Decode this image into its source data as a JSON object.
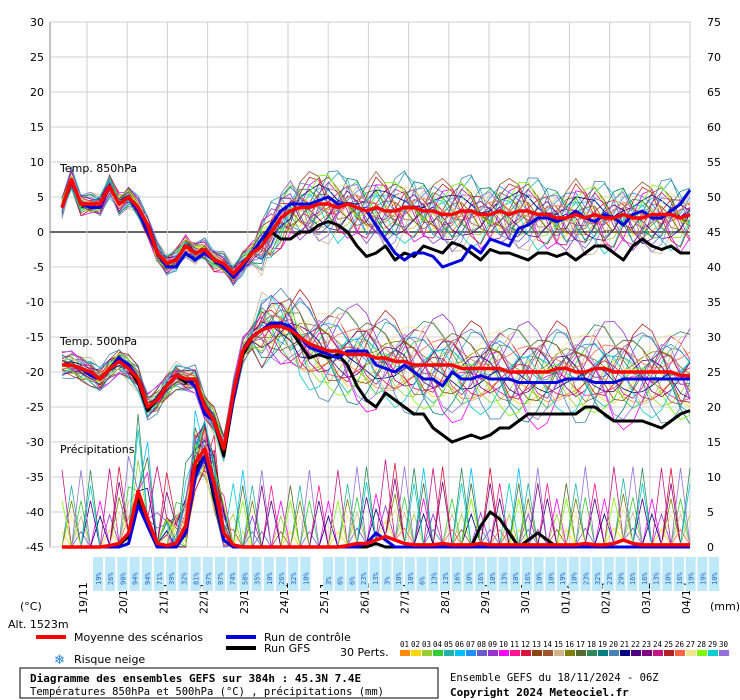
{
  "chart_data": {
    "type": "line",
    "title": "Diagramme des ensembles GEFS sur 384h : 45.3N 7.4E",
    "subtitle": "Températures 850hPa et 500hPa (°C) , précipitations (mm)",
    "left_axis": {
      "label": "(°C)",
      "range": [
        -45,
        30
      ],
      "ticks": [
        30,
        25,
        20,
        15,
        10,
        5,
        0,
        -5,
        -10,
        -15,
        -20,
        -25,
        -30,
        -35,
        -40,
        -45
      ]
    },
    "right_axis": {
      "label": "(mm)",
      "range": [
        0,
        75
      ],
      "ticks": [
        75,
        70,
        65,
        60,
        55,
        50,
        45,
        40,
        35,
        30,
        25,
        20,
        15,
        10,
        5,
        0
      ]
    },
    "x_ticks": [
      "19/11",
      "20/11",
      "21/11",
      "22/11",
      "23/11",
      "24/11",
      "25/11",
      "26/11",
      "27/11",
      "28/11",
      "29/11",
      "30/11",
      "01/12",
      "02/12",
      "03/12",
      "04/12"
    ],
    "altitude": "Alt. 1523m",
    "panels": [
      "Temp. 850hPa",
      "Temp. 500hPa",
      "Précipitations"
    ],
    "legend": {
      "mean": "Moyenne des scénarios",
      "control": "Run de contrôle",
      "gfs": "Run GFS",
      "snow": "Risque neige",
      "perts": "30 Perts."
    },
    "pert_labels": [
      "01",
      "02",
      "03",
      "04",
      "05",
      "06",
      "07",
      "08",
      "09",
      "10",
      "11",
      "12",
      "13",
      "14",
      "15",
      "16",
      "17",
      "18",
      "19",
      "20",
      "21",
      "22",
      "23",
      "24",
      "25",
      "26",
      "27",
      "28",
      "29",
      "30"
    ],
    "pert_colors": [
      "#ff8c00",
      "#ffd700",
      "#9acd32",
      "#32cd32",
      "#20b2aa",
      "#00bfff",
      "#1e90ff",
      "#6a5acd",
      "#9932cc",
      "#ff00ff",
      "#ff1493",
      "#dc143c",
      "#8b4513",
      "#a0522d",
      "#d2b48c",
      "#808000",
      "#556b2f",
      "#2e8b57",
      "#008080",
      "#4682b4",
      "#000080",
      "#4b0082",
      "#800080",
      "#c71585",
      "#b22222",
      "#ff6347",
      "#f0e68c",
      "#7cfc00",
      "#00ced1",
      "#9370db"
    ],
    "series": [
      {
        "name": "Moyenne des scénarios",
        "panel": "850hPa",
        "color": "#ff0000",
        "values": [
          3.5,
          7.5,
          4,
          4,
          4,
          6.5,
          4,
          5,
          3.5,
          1,
          -3,
          -4.5,
          -4,
          -2,
          -3,
          -2.5,
          -4,
          -4.5,
          -6,
          -4.5,
          -3,
          -2,
          0,
          2,
          3,
          3.5,
          3.5,
          4,
          4,
          3.5,
          4,
          3.5,
          3,
          3.5,
          3,
          3,
          3.5,
          3.5,
          3,
          3,
          2.5,
          2.5,
          3,
          3,
          2.5,
          2.5,
          3,
          2.5,
          3,
          3,
          2.5,
          2.5,
          2,
          2,
          2.5,
          2,
          2.5,
          2,
          2,
          2.5,
          2,
          2,
          2.5,
          2.5,
          2.5,
          2,
          2.5
        ]
      },
      {
        "name": "Run de contrôle",
        "panel": "850hPa",
        "color": "#0000dd",
        "values": [
          3.5,
          7.5,
          4,
          3.5,
          3.5,
          6.5,
          4,
          5,
          3,
          0,
          -3,
          -5,
          -5,
          -3,
          -4,
          -3,
          -4,
          -5,
          -6.5,
          -5,
          -3,
          -1,
          1,
          3,
          4,
          4,
          4,
          4.5,
          5,
          4,
          4,
          3.5,
          3,
          1,
          -1,
          -3,
          -4,
          -3,
          -3,
          -3.5,
          -5,
          -4.5,
          -4,
          -2,
          -3,
          -1,
          -1.5,
          -2,
          0.5,
          1,
          2,
          2,
          1.5,
          2,
          3,
          2,
          1.5,
          2.5,
          2,
          1,
          2.5,
          3,
          2,
          2,
          3,
          4,
          6
        ]
      },
      {
        "name": "Run GFS",
        "panel": "850hPa",
        "color": "#000000",
        "values": [
          3.5,
          7.5,
          4,
          4,
          4,
          6.5,
          4,
          5,
          3.5,
          1,
          -3,
          -5,
          -5,
          -3,
          -4,
          -3,
          -4,
          -5,
          -6,
          -4.5,
          -3,
          -1,
          0,
          -1,
          -1,
          0,
          0,
          1,
          1.5,
          1,
          0,
          -2,
          -3.5,
          -3,
          -2,
          -4,
          -3,
          -3.5,
          -2,
          -2.5,
          -3,
          -1.5,
          -2,
          -3,
          -4,
          -2.5,
          -3,
          -3,
          -3.5,
          -4,
          -3,
          -3,
          -3.5,
          -3,
          -4,
          -3,
          -2,
          -2,
          -3,
          -4,
          -2,
          -1,
          -2,
          -2.5,
          -2,
          -3,
          -3
        ]
      },
      {
        "name": "Moyenne des scénarios",
        "panel": "500hPa",
        "color": "#ff0000",
        "values": [
          -19,
          -19,
          -19.5,
          -20,
          -21,
          -19.5,
          -18.5,
          -19.5,
          -21,
          -25,
          -24,
          -22,
          -20.5,
          -21,
          -21,
          -25,
          -27,
          -31,
          -23,
          -17,
          -15,
          -14,
          -13.5,
          -13.5,
          -14,
          -15,
          -16,
          -16.5,
          -17,
          -17,
          -17.5,
          -17.5,
          -17.5,
          -18,
          -18,
          -18.5,
          -18.5,
          -19,
          -19,
          -19,
          -19,
          -19,
          -19.5,
          -19.5,
          -19.5,
          -19.5,
          -19.5,
          -20,
          -20,
          -20,
          -20,
          -20,
          -19.5,
          -19.5,
          -20,
          -20,
          -19.5,
          -19.5,
          -20,
          -20,
          -20,
          -20,
          -20,
          -20,
          -20,
          -20.5,
          -20.5
        ]
      },
      {
        "name": "Run de contrôle",
        "panel": "500hPa",
        "color": "#0000dd",
        "values": [
          -19,
          -19,
          -19.5,
          -20.5,
          -21,
          -19.5,
          -18,
          -19,
          -21,
          -25,
          -24,
          -22,
          -20.5,
          -21,
          -22,
          -26,
          -27,
          -31,
          -24,
          -17,
          -15,
          -14,
          -13,
          -13,
          -13.5,
          -15,
          -16.5,
          -17,
          -17.5,
          -18,
          -17,
          -17,
          -17,
          -19,
          -19.5,
          -20,
          -19,
          -20,
          -21,
          -21,
          -22,
          -20,
          -21,
          -21,
          -20.5,
          -21,
          -21,
          -21,
          -21.5,
          -21.5,
          -21.5,
          -21.5,
          -21.5,
          -21,
          -21,
          -21,
          -21.5,
          -21.5,
          -21.5,
          -21,
          -21,
          -21,
          -21,
          -21,
          -21,
          -21,
          -21
        ]
      },
      {
        "name": "Run GFS",
        "panel": "500hPa",
        "color": "#000000",
        "values": [
          -19,
          -19,
          -19.5,
          -20.5,
          -21,
          -19.5,
          -18,
          -19.5,
          -21.5,
          -25.5,
          -24,
          -22,
          -20.5,
          -21.5,
          -21,
          -25,
          -27,
          -32,
          -24,
          -17.5,
          -15,
          -14,
          -13,
          -13.5,
          -14,
          -16,
          -18,
          -17.5,
          -18,
          -17.5,
          -19,
          -22,
          -24,
          -25,
          -23,
          -24,
          -25,
          -26,
          -26,
          -28,
          -29,
          -30,
          -29.5,
          -29,
          -29.5,
          -29,
          -28,
          -28,
          -27,
          -26,
          -26,
          -26,
          -26,
          -26,
          -26,
          -25,
          -25,
          -26,
          -27,
          -27,
          -27,
          -27,
          -27.5,
          -28,
          -27,
          -26,
          -25.5
        ]
      },
      {
        "name": "Moyenne des scénarios",
        "panel": "precip_mm",
        "color": "#ff0000",
        "values": [
          0,
          0,
          0,
          0,
          0,
          0.2,
          0.5,
          2,
          8,
          4,
          0.5,
          0.2,
          0.5,
          3,
          12,
          14,
          9,
          2,
          0.3,
          0,
          0,
          0,
          0,
          0,
          0,
          0,
          0,
          0,
          0,
          0,
          0.2,
          0.5,
          0.5,
          1,
          1.5,
          1,
          0.5,
          0.3,
          0.3,
          0.3,
          0.5,
          0.3,
          0.3,
          0.3,
          0.5,
          0.3,
          0.3,
          0.3,
          0.3,
          0.3,
          0.3,
          0.3,
          0.3,
          0.3,
          0.3,
          0.5,
          0.3,
          0.3,
          0.5,
          1,
          0.5,
          0.3,
          0.3,
          0.3,
          0.3,
          0.3,
          0.3
        ]
      },
      {
        "name": "Run de contrôle",
        "panel": "precip_mm",
        "color": "#0000dd",
        "values": [
          0,
          0,
          0,
          0,
          0,
          0,
          0,
          0.5,
          6,
          3,
          0,
          0,
          0,
          2,
          10,
          13,
          8,
          1,
          0,
          0,
          0,
          0,
          0,
          0,
          0,
          0,
          0,
          0,
          0,
          0,
          0,
          0,
          0.5,
          2,
          1,
          0,
          0,
          0,
          0,
          0,
          0,
          0,
          0,
          0,
          0,
          0,
          0,
          0,
          0,
          0,
          0,
          0,
          0,
          0,
          0,
          0,
          0,
          0,
          0,
          0,
          0,
          0,
          0,
          0,
          0,
          0,
          0
        ]
      },
      {
        "name": "Run GFS",
        "panel": "precip_mm",
        "color": "#000000",
        "values": [
          0,
          0,
          0,
          0,
          0,
          0,
          0.3,
          1.5,
          7,
          3,
          0,
          0,
          0,
          2,
          11,
          13,
          7,
          1,
          0,
          0,
          0,
          0,
          0,
          0,
          0,
          0,
          0,
          0,
          0,
          0,
          0,
          0,
          0,
          0.5,
          0,
          0,
          0,
          0,
          0,
          0,
          0,
          0,
          0,
          0,
          3,
          5,
          4,
          2,
          0,
          1,
          2,
          1,
          0,
          0,
          0,
          0,
          0,
          0,
          0,
          0,
          0,
          0,
          0,
          0,
          0,
          0,
          0
        ]
      }
    ],
    "snow_risk_pct": [
      "19%",
      "26%",
      "90%",
      "94%",
      "94%",
      "71%",
      "39%",
      "32%",
      "81%",
      "97%",
      "97%",
      "74%",
      "58%",
      "35%",
      "10%",
      "26%",
      "32%",
      "10%",
      "3%",
      "6%",
      "6%",
      "23%",
      "13%",
      "3%",
      "10%",
      "10%",
      "6%",
      "13%",
      "13%",
      "16%",
      "10%",
      "16%",
      "10%",
      "13%",
      "10%",
      "16%",
      "10%",
      "10%",
      "19%",
      "10%",
      "23%",
      "32%",
      "23%",
      "29%",
      "16%",
      "16%",
      "13%",
      "10%",
      "16%",
      "19%",
      "19%",
      "10%"
    ],
    "grid": true
  },
  "footer": {
    "title": "Diagramme des ensembles GEFS sur 384h : 45.3N 7.4E",
    "subtitle": "Températures 850hPa et 500hPa (°C) , précipitations (mm)",
    "run": "Ensemble GEFS du 18/11/2024 - 06Z",
    "copyright": "Copyright 2024 Meteociel.fr"
  }
}
